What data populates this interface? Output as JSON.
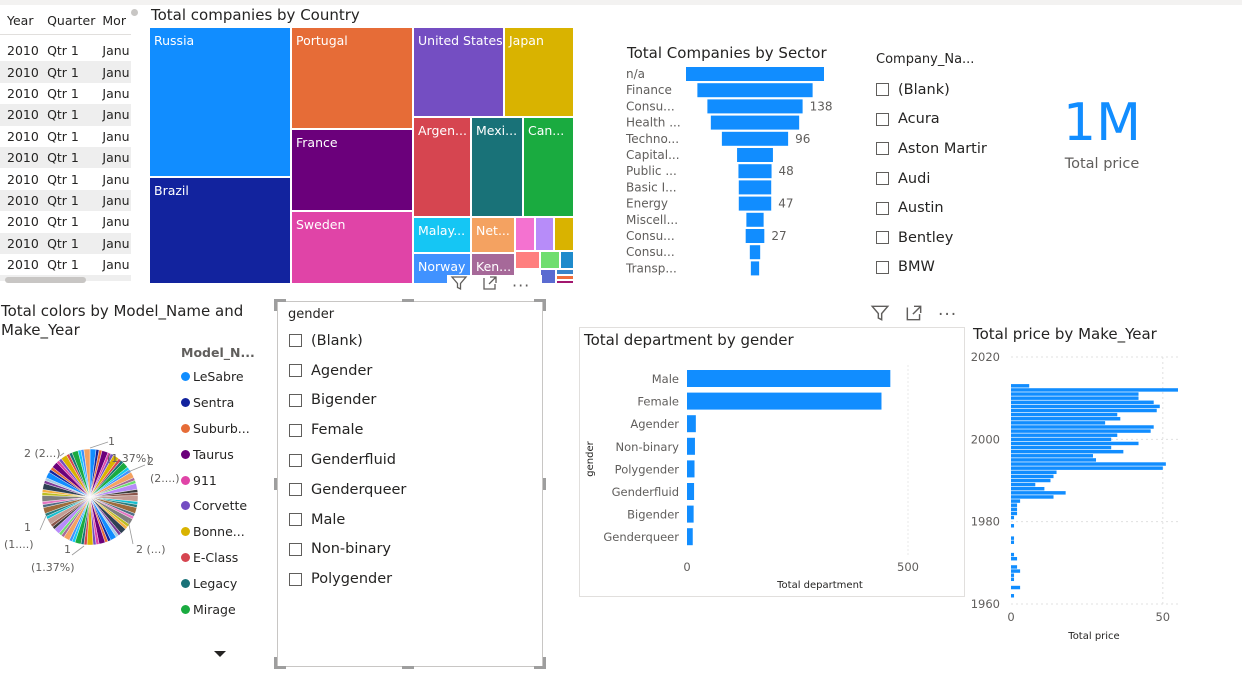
{
  "table": {
    "headers": [
      "Year",
      "Quarter",
      "Mor"
    ],
    "rows": [
      [
        "2010",
        "Qtr 1",
        "Janu"
      ],
      [
        "2010",
        "Qtr 1",
        "Janu"
      ],
      [
        "2010",
        "Qtr 1",
        "Janu"
      ],
      [
        "2010",
        "Qtr 1",
        "Janu"
      ],
      [
        "2010",
        "Qtr 1",
        "Janu"
      ],
      [
        "2010",
        "Qtr 1",
        "Janu"
      ],
      [
        "2010",
        "Qtr 1",
        "Janu"
      ],
      [
        "2010",
        "Qtr 1",
        "Janu"
      ],
      [
        "2010",
        "Qtr 1",
        "Janu"
      ],
      [
        "2010",
        "Qtr 1",
        "Janu"
      ],
      [
        "2010",
        "Qtr 1",
        "Janu"
      ],
      [
        "2010",
        "Qtr 1",
        "Janu"
      ]
    ]
  },
  "treemap": {
    "title": "Total companies by Country",
    "tiles": [
      {
        "label": "Russia",
        "color": "#118DFF"
      },
      {
        "label": "Brazil",
        "color": "#12239E"
      },
      {
        "label": "Portugal",
        "color": "#E66C37"
      },
      {
        "label": "France",
        "color": "#6B007B"
      },
      {
        "label": "Sweden",
        "color": "#E044A7"
      },
      {
        "label": "United States",
        "color": "#744EC2"
      },
      {
        "label": "Japan",
        "color": "#D9B300"
      },
      {
        "label": "Argen...",
        "color": "#D64550"
      },
      {
        "label": "Mexi...",
        "color": "#197278"
      },
      {
        "label": "Can...",
        "color": "#1AAB40"
      },
      {
        "label": "Malay...",
        "color": "#15C6F4"
      },
      {
        "label": "Net...",
        "color": "#F4A261"
      },
      {
        "label": "Norway",
        "color": "#4092FF"
      },
      {
        "label": "Ken...",
        "color": "#A66999"
      }
    ],
    "small_colors": [
      "#F472D0",
      "#B78CF9",
      "#D9B300",
      "#FF7F7F",
      "#6FDE6E",
      "#1E8BCC",
      "#5A6BD1",
      "#3A84C9",
      "#F16D3B",
      "#A2166E"
    ]
  },
  "funnel": {
    "title": "Total Companies by Sector",
    "categories": [
      "n/a",
      "Finance",
      "Consu...",
      "Health ...",
      "Techno...",
      "Capital...",
      "Public ...",
      "Basic I...",
      "Energy",
      "Miscell...",
      "Consu...",
      "Consu...",
      "Transp..."
    ],
    "values": [
      200,
      167,
      138,
      128,
      96,
      52,
      48,
      47,
      47,
      25,
      27,
      15,
      12
    ],
    "data_labels": [
      "",
      "",
      "138",
      "",
      "96",
      "",
      "48",
      "",
      "47",
      "",
      "27",
      "",
      ""
    ],
    "color": "#118DFF"
  },
  "company_slicer": {
    "title": "Company_Na...",
    "items": [
      "(Blank)",
      "Acura",
      "Aston Martir",
      "Audi",
      "Austin",
      "Bentley",
      "BMW"
    ]
  },
  "card": {
    "value": "1M",
    "label": "Total price",
    "color": "#118DFF"
  },
  "pie": {
    "title_line1": "Total colors by Model_Name and",
    "title_line2": "Make_Year",
    "legend_title": "Model_N...",
    "legend": [
      {
        "label": "LeSabre",
        "color": "#118DFF"
      },
      {
        "label": "Sentra",
        "color": "#12239E"
      },
      {
        "label": "Suburb...",
        "color": "#E66C37"
      },
      {
        "label": "Taurus",
        "color": "#6B007B"
      },
      {
        "label": "911",
        "color": "#E044A7"
      },
      {
        "label": "Corvette",
        "color": "#744EC2"
      },
      {
        "label": "Bonne...",
        "color": "#D9B300"
      },
      {
        "label": "E-Class",
        "color": "#D64550"
      },
      {
        "label": "Legacy",
        "color": "#197278"
      },
      {
        "label": "Mirage",
        "color": "#1AAB40"
      }
    ],
    "slice_colors": [
      "#118DFF",
      "#12239E",
      "#E66C37",
      "#6B007B",
      "#E044A7",
      "#744EC2",
      "#D9B300",
      "#D64550",
      "#197278",
      "#1AAB40",
      "#15C6F4",
      "#4092FF",
      "#F4A261",
      "#A66999",
      "#6FDE6E",
      "#B78CF9",
      "#3D3D3D",
      "#8C564B",
      "#C49C94",
      "#17BECF",
      "#2C7A7B",
      "#9E6B3C",
      "#506D85",
      "#E377C2",
      "#7F7F7F",
      "#BCBD22",
      "#F5B041",
      "#2E4053",
      "#7D3C98",
      "#A9CCE3"
    ],
    "labels": {
      "top": "1",
      "top_pct": "(1.37%)",
      "left": "2 (2...)",
      "right_top": "2",
      "right_top2": "(2....)",
      "right_bottom": "2 (...)",
      "left_bottom": "1",
      "left_bottom2": "(1....)",
      "bottom_val": "1",
      "bottom_pct": "(1.37%)"
    }
  },
  "gender_slicer": {
    "title": "gender",
    "items": [
      "(Blank)",
      "Agender",
      "Bigender",
      "Female",
      "Genderfluid",
      "Genderqueer",
      "Male",
      "Non-binary",
      "Polygender"
    ]
  },
  "dept_chart": {
    "title": "Total department by gender",
    "categories": [
      "Male",
      "Female",
      "Agender",
      "Non-binary",
      "Polygender",
      "Genderfluid",
      "Bigender",
      "Genderqueer"
    ],
    "values": [
      460,
      440,
      20,
      18,
      17,
      16,
      15,
      13
    ],
    "xlabel": "Total department",
    "ylabel": "gender",
    "xticks": [
      "0",
      "500"
    ],
    "xlim": [
      0,
      500
    ],
    "color": "#118DFF"
  },
  "price_chart": {
    "title": "Total price by Make_Year",
    "xlabel": "Total price",
    "yticks": [
      "2020",
      "2000",
      "1980",
      "1960"
    ],
    "xticks": [
      "0",
      "50"
    ],
    "ylim": [
      1960,
      2020
    ],
    "xlim": [
      0,
      55
    ],
    "color": "#118DFF",
    "chart_data": {
      "type": "bar",
      "orientation": "horizontal",
      "x": [
        2013,
        2012,
        2011,
        2010,
        2009,
        2008,
        2007,
        2006,
        2005,
        2004,
        2003,
        2002,
        2001,
        2000,
        1999,
        1998,
        1997,
        1996,
        1995,
        1994,
        1993,
        1992,
        1991,
        1990,
        1989,
        1988,
        1987,
        1986,
        1985,
        1984,
        1983,
        1982,
        1981,
        1979,
        1976,
        1975,
        1972,
        1971,
        1969,
        1968,
        1967,
        1966,
        1964,
        1962
      ],
      "values": [
        6,
        55,
        42,
        42,
        47,
        49,
        48,
        35,
        36,
        31,
        47,
        46,
        35,
        33,
        42,
        33,
        37,
        27,
        28,
        51,
        50,
        15,
        14,
        13,
        8,
        11,
        18,
        14,
        3,
        2,
        2,
        2,
        1,
        1,
        1,
        1,
        1,
        2,
        2,
        3,
        1,
        1,
        3,
        1
      ]
    }
  },
  "visual_header": {
    "filter_icon": "filter-icon",
    "focus_icon": "focus-mode-icon",
    "more_icon": "more-options-icon"
  }
}
